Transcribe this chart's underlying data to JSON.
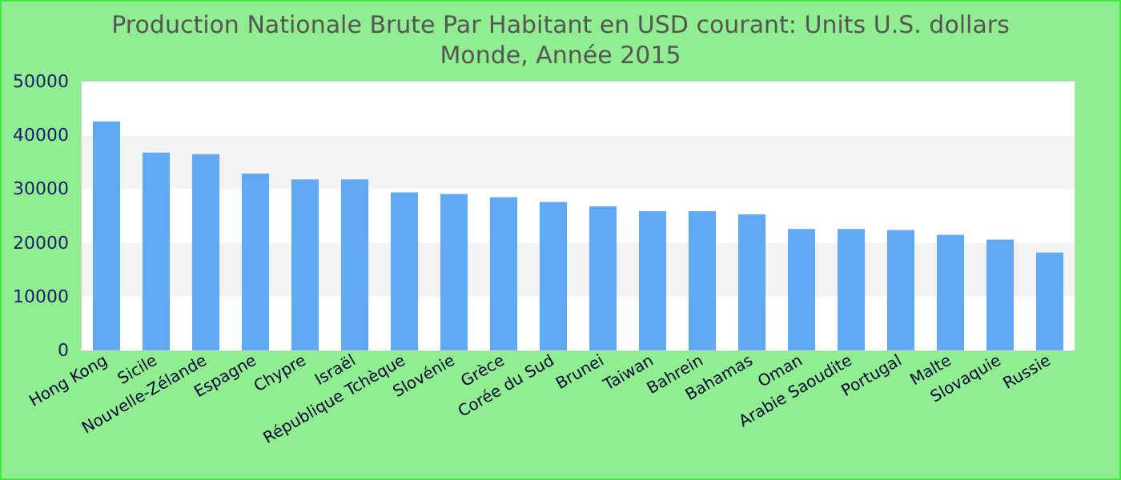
{
  "chart_data": {
    "type": "bar",
    "title": "Production Nationale Brute Par Habitant en USD courant: Units U.S. dollars",
    "subtitle": "Monde, Année 2015",
    "categories": [
      "Hong Kong",
      "Sicile",
      "Nouvelle-Zélande",
      "Espagne",
      "Chypre",
      "Israël",
      "République Tchèque",
      "Slovénie",
      "Grèce",
      "Corée du Sud",
      "Brunei",
      "Taiwan",
      "Bahrein",
      "Bahamas",
      "Oman",
      "Arabie Saoudite",
      "Portugal",
      "Malte",
      "Slovaquie",
      "Russie"
    ],
    "values": [
      42600,
      36800,
      36500,
      32900,
      31800,
      31800,
      29400,
      29100,
      28500,
      27600,
      26800,
      25900,
      25900,
      25300,
      22600,
      22600,
      22400,
      21500,
      20600,
      18200
    ],
    "color": "#62a9f3",
    "ylim": [
      0,
      50000
    ],
    "yticks": [
      0,
      10000,
      20000,
      30000,
      40000,
      50000
    ],
    "grid": false
  }
}
